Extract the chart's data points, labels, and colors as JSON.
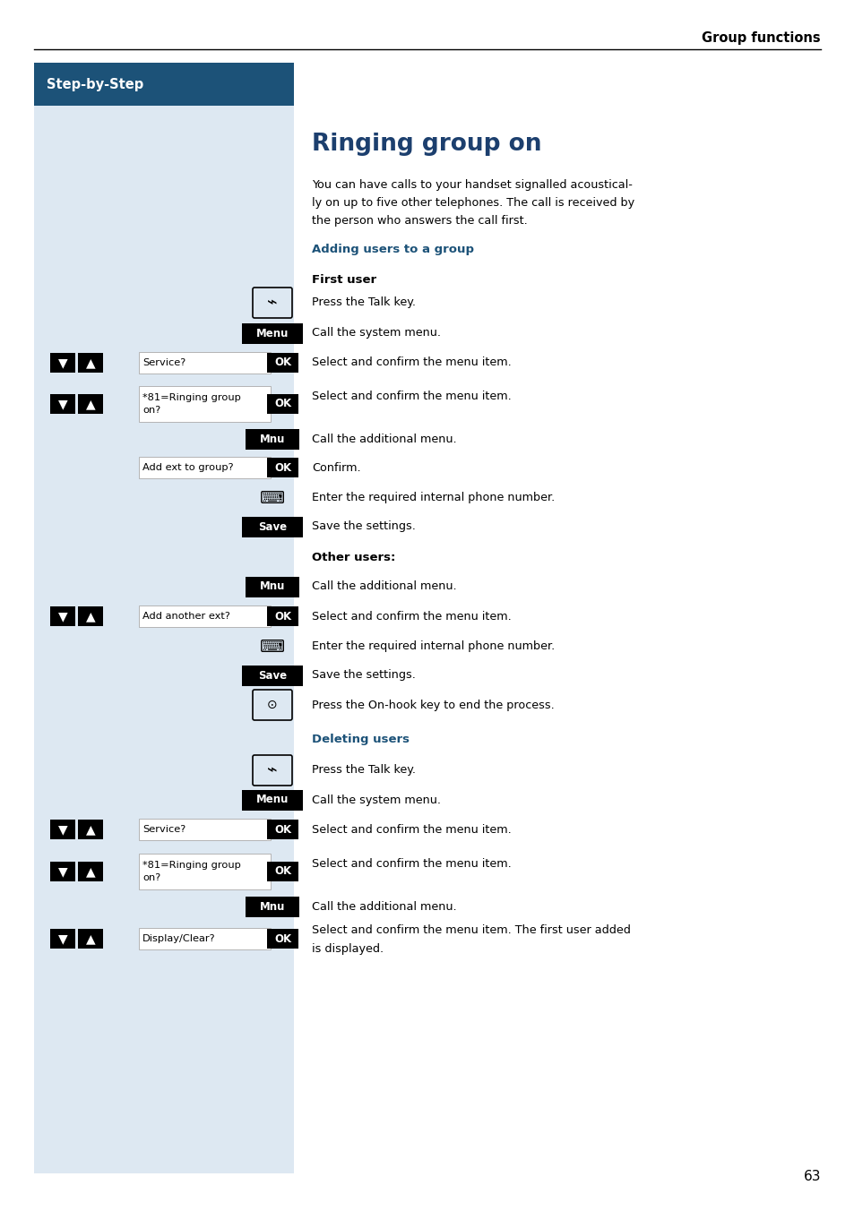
{
  "page_bg": "#ffffff",
  "left_panel_bg": "#dde8f2",
  "header_text": "Group functions",
  "step_by_step_bg": "#1c5278",
  "step_by_step_text": "Step-by-Step",
  "title": "Ringing group on",
  "title_color": "#1c3f6e",
  "section1_color": "#1c5278",
  "page_number": "63",
  "figw": 9.54,
  "figh": 13.52
}
